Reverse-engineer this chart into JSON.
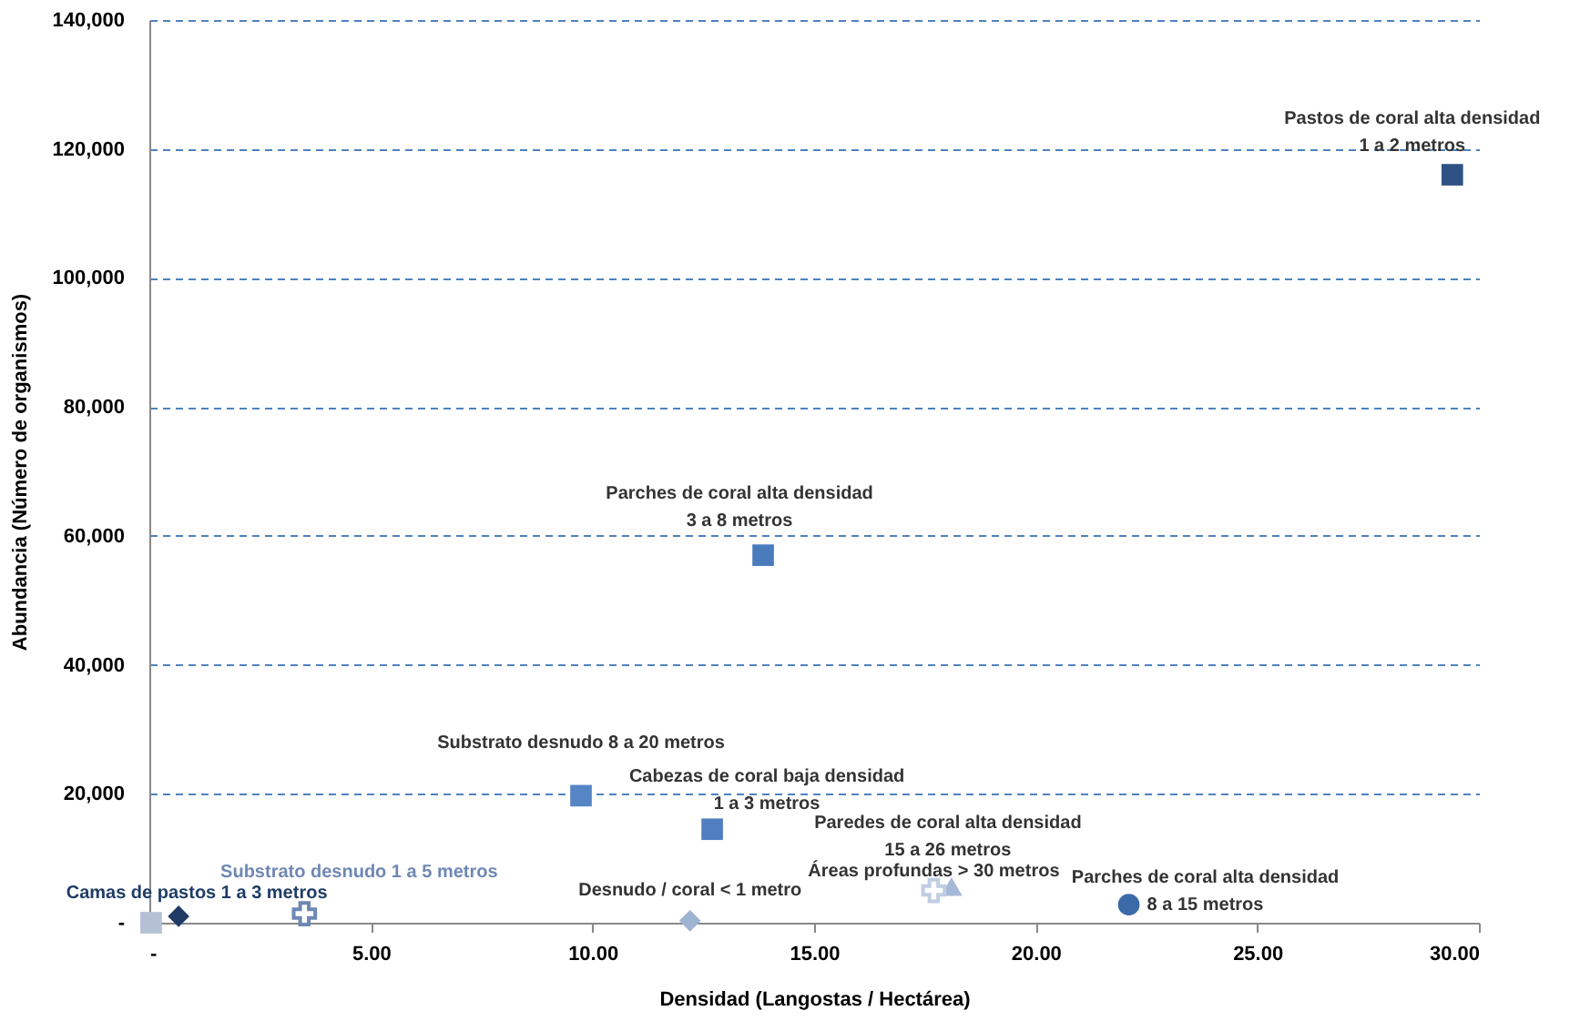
{
  "chart_data": {
    "type": "scatter",
    "xlabel": "Densidad  (Langostas / Hectárea)",
    "ylabel": "Abundancia  (Número de organismos)",
    "xlim": [
      0,
      30
    ],
    "xticks": [
      {
        "value": 0,
        "label": "-"
      },
      {
        "value": 5,
        "label": "5.00"
      },
      {
        "value": 10,
        "label": "10.00"
      },
      {
        "value": 15,
        "label": "15.00"
      },
      {
        "value": 20,
        "label": "20.00"
      },
      {
        "value": 25,
        "label": "25.00"
      },
      {
        "value": 30,
        "label": "30.00"
      }
    ],
    "ylim": [
      0,
      140000
    ],
    "yticks": [
      {
        "value": 0,
        "label": "-"
      },
      {
        "value": 20000,
        "label": "20,000"
      },
      {
        "value": 40000,
        "label": "40,000"
      },
      {
        "value": 60000,
        "label": "60,000"
      },
      {
        "value": 80000,
        "label": "80,000"
      },
      {
        "value": 100000,
        "label": "100,000"
      },
      {
        "value": 120000,
        "label": "120,000"
      },
      {
        "value": 140000,
        "label": "140,000"
      }
    ],
    "grid": "y",
    "series": [
      {
        "color": "#b4c0d4",
        "marker": "square",
        "x": [
          0.04
        ],
        "values": [
          0
        ]
      },
      {
        "name": "Camas de pastos 1 a 3 metros",
        "color": "#1f3c66",
        "marker": "diamond",
        "x": [
          0.66
        ],
        "values": [
          1000
        ]
      },
      {
        "name": "Substrato desnudo 1 a 5 metros",
        "color": "#6f88b3",
        "marker": "cross",
        "x": [
          3.5
        ],
        "values": [
          1400
        ]
      },
      {
        "name": "Desnudo / coral < 1 metro",
        "color": "#9fb3d3",
        "marker": "diamond",
        "x": [
          12.2
        ],
        "values": [
          300
        ]
      },
      {
        "name": "Parches de coral alta densidad 8 a 15 metros",
        "color": "#3b6aa8",
        "marker": "circle",
        "x": [
          22.1
        ],
        "values": [
          2800
        ]
      },
      {
        "name": "Paredes de coral alta densidad 15 a 26 metros",
        "color": "#a5b8d8",
        "marker": "triangle",
        "x": [
          18.1
        ],
        "values": [
          5600
        ]
      },
      {
        "name": "Áreas profundas > 30 metros",
        "color": "#c0cde2",
        "marker": "cross",
        "x": [
          17.7
        ],
        "values": [
          5000
        ]
      },
      {
        "name": "Cabezas de coral baja densidad 1 a 3 metros",
        "color": "#4f7fbf",
        "marker": "square",
        "x": [
          12.7
        ],
        "values": [
          14500
        ]
      },
      {
        "name": "Substrato desnudo 8 a 20 metros",
        "color": "#5585c4",
        "marker": "square",
        "x": [
          9.74
        ],
        "values": [
          19700
        ]
      },
      {
        "name": "Parches de coral alta densidad 3 a 8 metros",
        "color": "#4a7bbd",
        "marker": "square",
        "x": [
          13.85
        ],
        "values": [
          57000
        ]
      },
      {
        "name": "Pastos de coral alta densidad 1 a 2 metros",
        "color": "#2e5283",
        "marker": "square",
        "x": [
          29.4
        ],
        "values": [
          116000
        ]
      }
    ]
  }
}
